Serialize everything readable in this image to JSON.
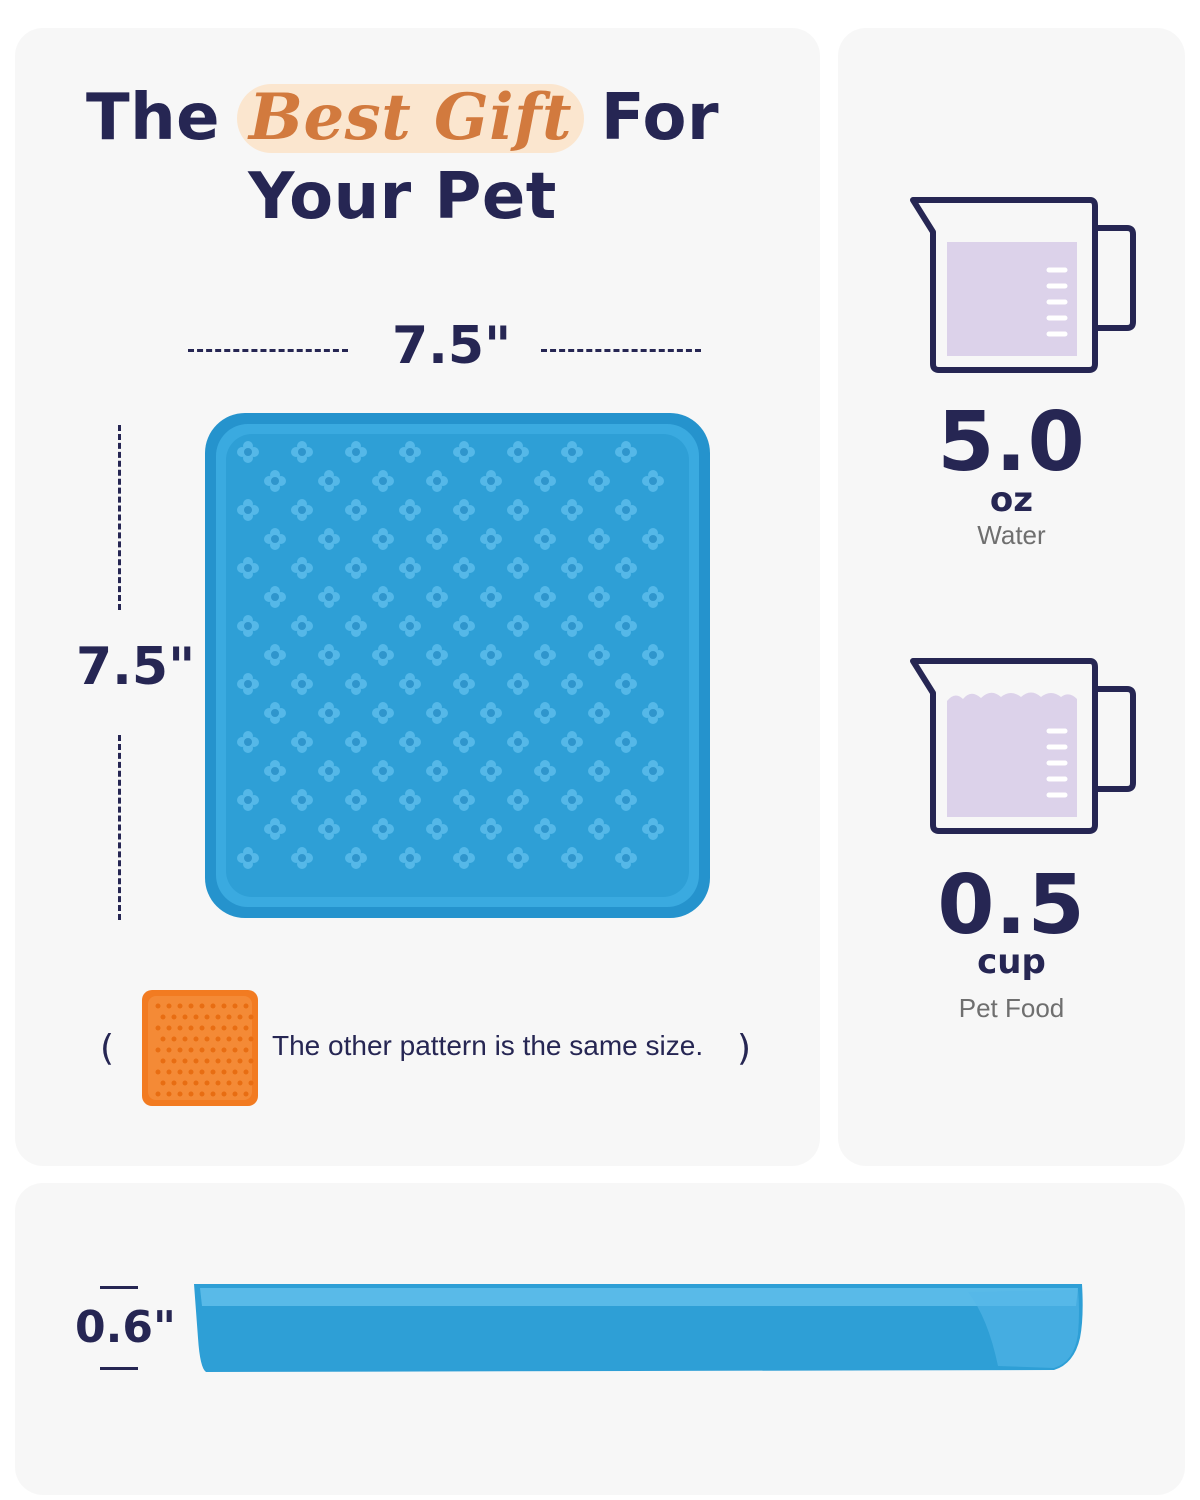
{
  "headline": {
    "before": "The",
    "highlight": "Best Gift",
    "after": "For",
    "line2": "Your Pet"
  },
  "dimensions": {
    "width": "7.5\"",
    "height": "7.5\"",
    "thickness": "0.6\""
  },
  "note": {
    "open": "(",
    "text": "The other pattern is the same size.",
    "close": ")"
  },
  "capacity": [
    {
      "value": "5.0",
      "unit": "oz",
      "label": "Water",
      "icon": "measuring-cup-water-icon"
    },
    {
      "value": "0.5",
      "unit": "cup",
      "label": "Pet Food",
      "icon": "measuring-cup-food-icon"
    }
  ],
  "colors": {
    "navy": "#262653",
    "mat_blue": "#2e9fd6",
    "mat_orange": "#f27b21",
    "highlight": "#d27a3e",
    "cup_fill": "#dcd2ea"
  }
}
